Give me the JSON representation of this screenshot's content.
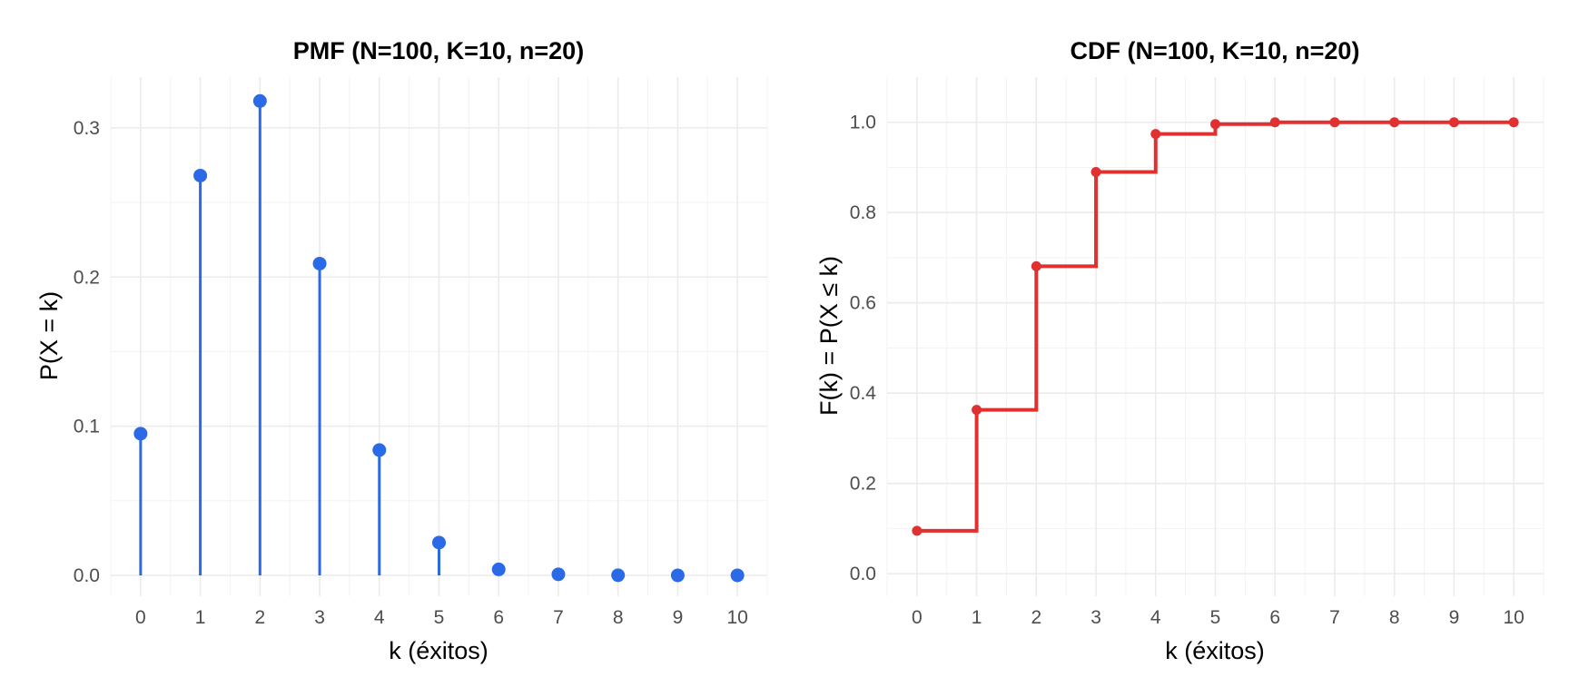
{
  "chart_data": [
    {
      "type": "lollipop",
      "title": "PMF  (N=100, K=10, n=20)",
      "xlabel": "k (éxitos)",
      "ylabel": "P(X = k)",
      "x": [
        0,
        1,
        2,
        3,
        4,
        5,
        6,
        7,
        8,
        9,
        10
      ],
      "values": [
        0.095,
        0.268,
        0.318,
        0.209,
        0.084,
        0.022,
        0.004,
        0.0007,
        0.0001,
        0.0,
        0.0
      ],
      "x_ticks": [
        "0",
        "1",
        "2",
        "3",
        "4",
        "5",
        "6",
        "7",
        "8",
        "9",
        "10"
      ],
      "y_ticks": [
        "0.0",
        "0.1",
        "0.2",
        "0.3"
      ],
      "xlim": [
        -0.5,
        10.5
      ],
      "ylim": [
        -0.014,
        0.334
      ],
      "y_tick_values": [
        0,
        0.1,
        0.2,
        0.3
      ],
      "color": "#2a6ae6",
      "grid": true,
      "legend": "none"
    },
    {
      "type": "step",
      "title": "CDF  (N=100, K=10, n=20)",
      "xlabel": "k (éxitos)",
      "ylabel": "F(k) = P(X ≤ k)",
      "x": [
        0,
        1,
        2,
        3,
        4,
        5,
        6,
        7,
        8,
        9,
        10
      ],
      "values": [
        0.095,
        0.363,
        0.681,
        0.89,
        0.974,
        0.996,
        1.0,
        1.0,
        1.0,
        1.0,
        1.0
      ],
      "x_ticks": [
        "0",
        "1",
        "2",
        "3",
        "4",
        "5",
        "6",
        "7",
        "8",
        "9",
        "10"
      ],
      "y_ticks": [
        "0.0",
        "0.2",
        "0.4",
        "0.6",
        "0.8",
        "1.0"
      ],
      "xlim": [
        -0.5,
        10.5
      ],
      "ylim": [
        -0.05,
        1.1
      ],
      "y_tick_values": [
        0,
        0.2,
        0.4,
        0.6,
        0.8,
        1.0
      ],
      "color": "#e03030",
      "grid": true,
      "legend": "none"
    }
  ]
}
